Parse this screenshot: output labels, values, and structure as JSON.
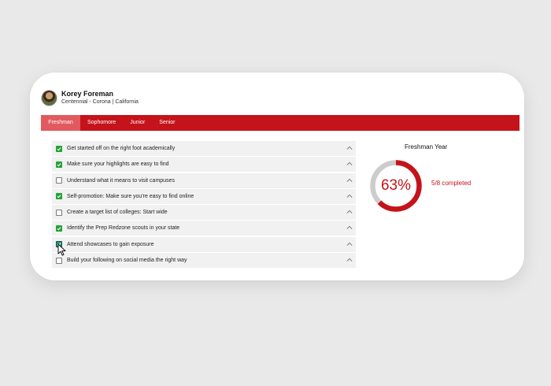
{
  "profile": {
    "name": "Korey Foreman",
    "location": "Centennial - Corona | California"
  },
  "tabs": [
    {
      "label": "Freshman",
      "active": true
    },
    {
      "label": "Sophomore",
      "active": false
    },
    {
      "label": "Junior",
      "active": false
    },
    {
      "label": "Senior",
      "active": false
    }
  ],
  "checklist": [
    {
      "label": "Get started off on the right foot academically",
      "checked": true
    },
    {
      "label": "Make sure your highlights are easy to find",
      "checked": true
    },
    {
      "label": "Understand what it means to visit campuses",
      "checked": false
    },
    {
      "label": "Self-promotion: Make sure you're easy to find online",
      "checked": true
    },
    {
      "label": "Create a target list of colleges: Start wide",
      "checked": false
    },
    {
      "label": "Identify the Prep Redzone scouts in your state",
      "checked": true
    },
    {
      "label": "Attend showcases to gain exposure",
      "checked": true
    },
    {
      "label": "Build your following on social media the right way",
      "checked": false
    }
  ],
  "progress": {
    "title": "Freshman Year",
    "percent_label": "63%",
    "completed_label": "5/8 completed",
    "fraction": 0.625
  },
  "colors": {
    "brand_red": "#c5131b",
    "active_tab": "#e25a5f",
    "check_green": "#22a335",
    "ring_track": "#cccccc"
  },
  "icons": {
    "item_toggle": "chevron-up-icon",
    "cursor": "mouse-pointer-icon"
  }
}
